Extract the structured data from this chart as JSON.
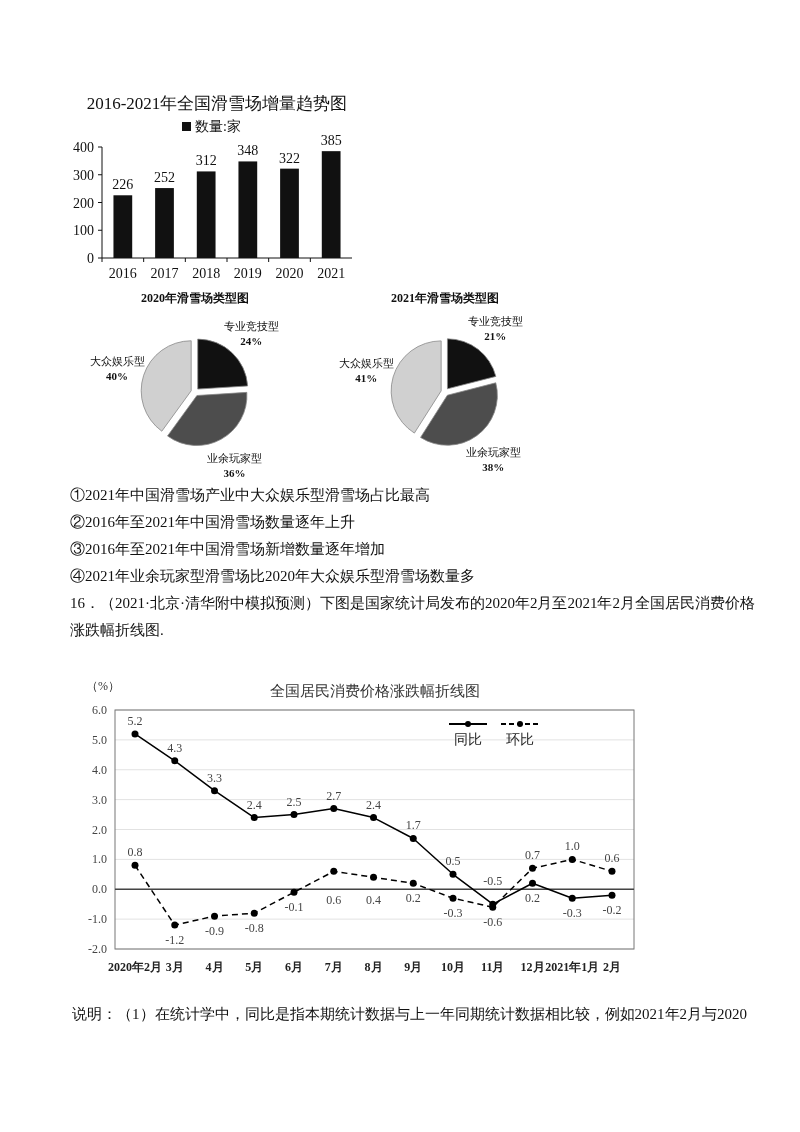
{
  "chart_data": [
    {
      "type": "bar",
      "title": "2016-2021年全国滑雪场增量趋势图",
      "categories": [
        "2016",
        "2017",
        "2018",
        "2019",
        "2020",
        "2021"
      ],
      "series": [
        {
          "name": "数量:家",
          "color": "#111111",
          "values": [
            226,
            252,
            312,
            348,
            322,
            385
          ]
        }
      ],
      "ylim": [
        0,
        400
      ],
      "yticks": [
        0,
        100,
        200,
        300,
        400
      ],
      "data_labels": true,
      "legend": "top"
    },
    {
      "type": "pie",
      "title": "2020年滑雪场类型图",
      "categories": [
        "专业竞技型",
        "业余玩家型",
        "大众娱乐型"
      ],
      "values": [
        24,
        36,
        40
      ],
      "colors": [
        "#111111",
        "#4d4d4d",
        "#d0d0d0"
      ],
      "value_labels": [
        "24%",
        "36%",
        "40%"
      ]
    },
    {
      "type": "pie",
      "title": "2021年滑雪场类型图",
      "categories": [
        "专业竞技型",
        "业余玩家型",
        "大众娱乐型"
      ],
      "values": [
        21,
        38,
        41
      ],
      "colors": [
        "#111111",
        "#4d4d4d",
        "#d0d0d0"
      ],
      "value_labels": [
        "21%",
        "38%",
        "41%"
      ]
    },
    {
      "type": "other",
      "annotations": [
        "①2021年中国滑雪场产业中大众娱乐型滑雪场占比最高",
        "②2016年至2021年中国滑雪场数量逐年上升",
        "③2016年至2021年中国滑雪场新增数量逐年增加",
        "④2021年业余玩家型滑雪场比2020年大众娱乐型滑雪场数量多",
        "16．（2021·北京·清华附中模拟预测）下图是国家统计局发布的2020年2月至2021年2月全国居民消费价格涨跌幅折线图."
      ]
    },
    {
      "type": "line",
      "title": "全国居民消费价格涨跌幅折线图",
      "ylabel": "（%）",
      "categories": [
        "2020年2月",
        "3月",
        "4月",
        "5月",
        "6月",
        "7月",
        "8月",
        "9月",
        "10月",
        "11月",
        "12月",
        "2021年1月",
        "2月"
      ],
      "series": [
        {
          "name": "同比",
          "color": "#000000",
          "line_style": "solid",
          "values": [
            5.2,
            4.3,
            3.3,
            2.4,
            2.5,
            2.7,
            2.4,
            1.7,
            0.5,
            -0.5,
            0.2,
            -0.3,
            -0.2
          ],
          "value_labels": [
            "5.2",
            "4.3",
            "3.3",
            "2.4",
            "2.5",
            "2.7",
            "2.4",
            "1.7",
            "0.5",
            "-0.5",
            "0.2",
            "-0.3",
            "-0.2"
          ]
        },
        {
          "name": "环比",
          "color": "#000000",
          "line_style": "dashed",
          "values": [
            0.8,
            -1.2,
            -0.9,
            -0.8,
            -0.1,
            0.6,
            0.4,
            0.2,
            -0.3,
            -0.6,
            0.7,
            1.0,
            0.6
          ],
          "value_labels": [
            "0.8",
            "-1.2",
            "-0.9",
            "-0.8",
            "-0.1",
            "0.6",
            "0.4",
            "0.2",
            "-0.3",
            "-0.6",
            "0.7",
            "1.0",
            "0.6"
          ]
        }
      ],
      "ylim": [
        -2,
        6
      ],
      "yticks": [
        {
          "value": -2,
          "label": "-2.0"
        },
        {
          "value": -1,
          "label": "-1.0"
        },
        {
          "value": 0,
          "label": "0.0"
        },
        {
          "value": 1,
          "label": "1.0"
        },
        {
          "value": 2,
          "label": "2.0"
        },
        {
          "value": 3,
          "label": "3.0"
        },
        {
          "value": 4,
          "label": "4.0"
        },
        {
          "value": 5,
          "label": "5.0"
        },
        {
          "value": 6,
          "label": "6.0"
        }
      ],
      "grid": "y",
      "marker": "circle",
      "legend": "top right",
      "ref_lines": [
        {
          "axis": "y",
          "value": 0,
          "color": "#444444"
        }
      ],
      "annotations": [
        "说明：（1）在统计学中，同比是指本期统计数据与上一年同期统计数据相比较，例如2021年2月与2020"
      ]
    }
  ]
}
